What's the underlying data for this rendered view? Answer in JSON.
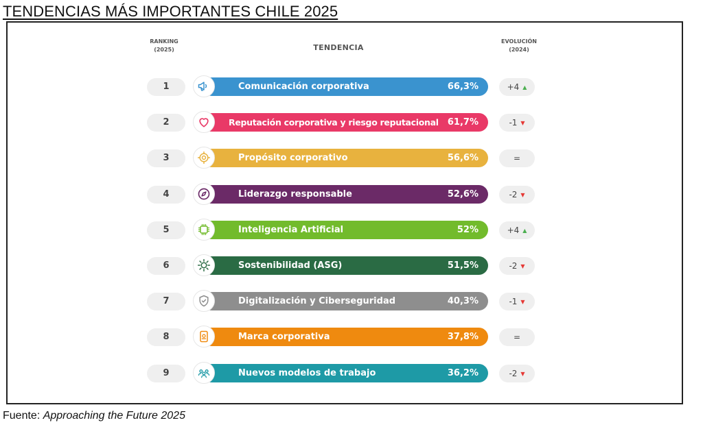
{
  "title": "TENDENCIAS MÁS IMPORTANTES CHILE 2025",
  "headers": {
    "ranking_line1": "RANKING",
    "ranking_line2": "(2025)",
    "tendencia": "TENDENCIA",
    "evolucion_line1": "EVOLUCIÓN",
    "evolucion_line2": "(2024)"
  },
  "source": {
    "prefix": "Fuente: ",
    "name": "Approaching the Future 2025"
  },
  "chart_data": {
    "type": "bar",
    "title": "TENDENCIAS MÁS IMPORTANTES CHILE 2025",
    "rows": [
      {
        "rank": "1",
        "label": "Comunicación corporativa",
        "value": 66.3,
        "value_text": "66,3%",
        "evolution": "+4",
        "trend": "up",
        "color": "#3a93cf",
        "icon": "megaphone-icon"
      },
      {
        "rank": "2",
        "label": "Reputación corporativa y riesgo reputacional",
        "value": 61.7,
        "value_text": "61,7%",
        "evolution": "-1",
        "trend": "down",
        "color": "#e93967",
        "icon": "heart-icon"
      },
      {
        "rank": "3",
        "label": "Propósito corporativo",
        "value": 56.6,
        "value_text": "56,6%",
        "evolution": "=",
        "trend": "same",
        "color": "#e8b23e",
        "icon": "target-icon"
      },
      {
        "rank": "4",
        "label": "Liderazgo responsable",
        "value": 52.6,
        "value_text": "52,6%",
        "evolution": "-2",
        "trend": "down",
        "color": "#6b2a67",
        "icon": "compass-icon"
      },
      {
        "rank": "5",
        "label": "Inteligencia Artificial",
        "value": 52,
        "value_text": "52%",
        "evolution": "+4",
        "trend": "up",
        "color": "#72bb2c",
        "icon": "chip-icon"
      },
      {
        "rank": "6",
        "label": "Sostenibilidad (ASG)",
        "value": 51.5,
        "value_text": "51,5%",
        "evolution": "-2",
        "trend": "down",
        "color": "#2a6b44",
        "icon": "sun-icon"
      },
      {
        "rank": "7",
        "label": "Digitalización y Ciberseguridad",
        "value": 40.3,
        "value_text": "40,3%",
        "evolution": "-1",
        "trend": "down",
        "color": "#8e8e8e",
        "icon": "shield-icon"
      },
      {
        "rank": "8",
        "label": "Marca corporativa",
        "value": 37.8,
        "value_text": "37,8%",
        "evolution": "=",
        "trend": "same",
        "color": "#ef8a0f",
        "icon": "badge-icon"
      },
      {
        "rank": "9",
        "label": "Nuevos modelos de trabajo",
        "value": 36.2,
        "value_text": "36,2%",
        "evolution": "-2",
        "trend": "down",
        "color": "#1e9aa6",
        "icon": "people-icon"
      }
    ],
    "trend_colors": {
      "up": "#4caf50",
      "down": "#e53935"
    }
  }
}
